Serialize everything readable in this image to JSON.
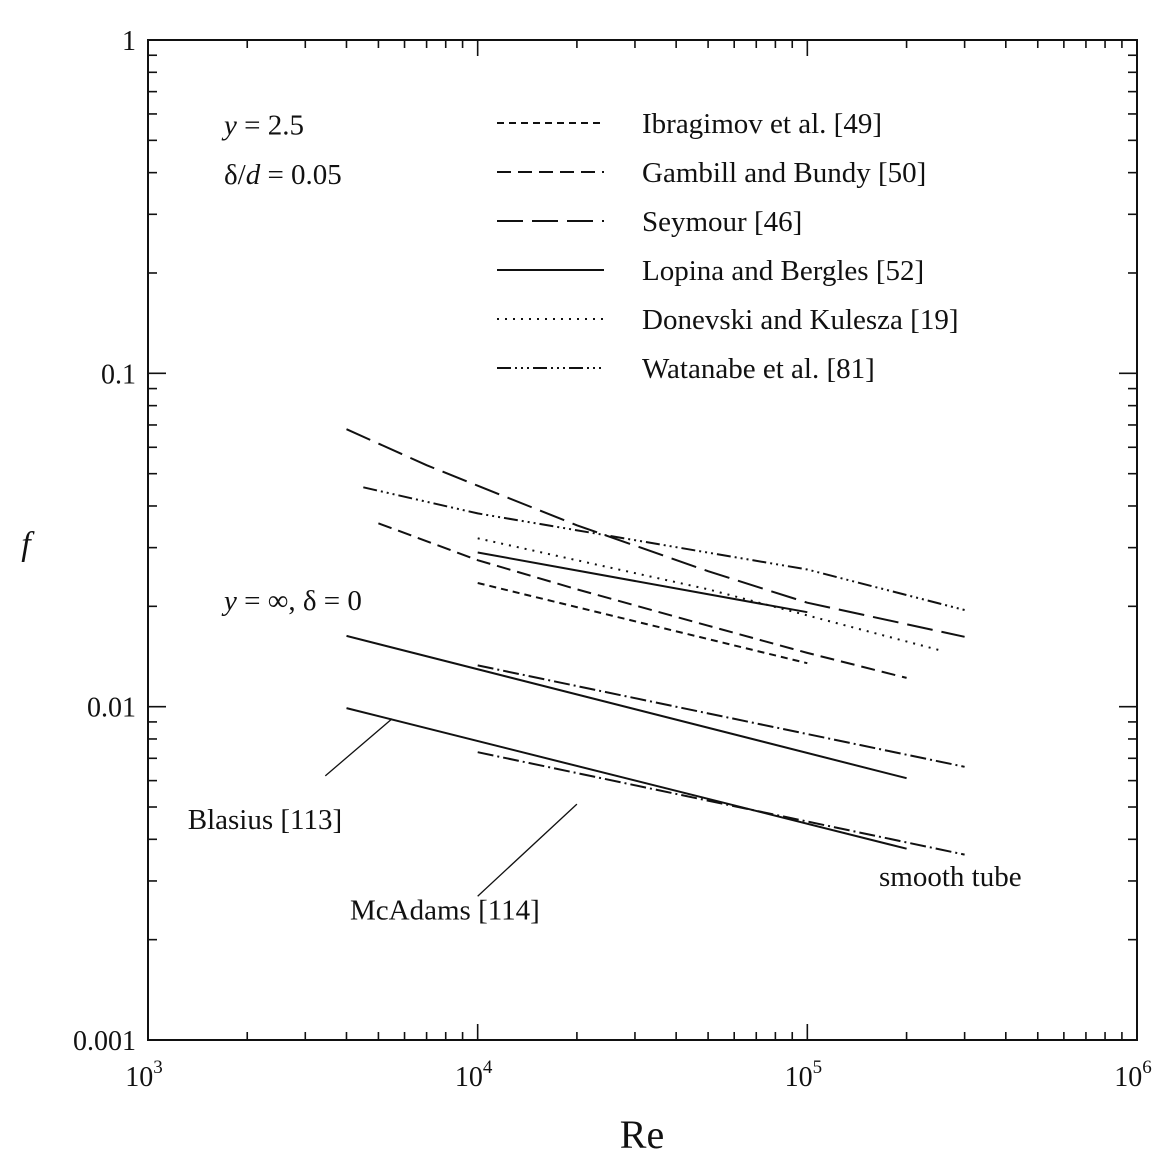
{
  "chart_data": {
    "type": "line",
    "xlabel": "Re",
    "ylabel": "f",
    "xscale": "log",
    "yscale": "log",
    "xlim": [
      1000,
      1000000
    ],
    "ylim": [
      0.001,
      1
    ],
    "x_tick_labels": [
      {
        "base": "10",
        "exp": "3",
        "value": 1000
      },
      {
        "base": "10",
        "exp": "4",
        "value": 10000
      },
      {
        "base": "10",
        "exp": "5",
        "value": 100000
      },
      {
        "base": "10",
        "exp": "6",
        "value": 1000000
      }
    ],
    "y_tick_labels": [
      {
        "text": "0.001",
        "value": 0.001
      },
      {
        "text": "0.01",
        "value": 0.01
      },
      {
        "text": "0.1",
        "value": 0.1
      },
      {
        "text": "1",
        "value": 1
      }
    ],
    "legend_position": "top-right",
    "series": [
      {
        "name": "Ibragimov et al. [49]",
        "dash": "7,5",
        "x": [
          10000,
          100000
        ],
        "y": [
          0.0235,
          0.0135
        ]
      },
      {
        "name": "Gambill and Bundy [50]",
        "dash": "14,7",
        "x": [
          5000,
          10000,
          20000,
          50000,
          100000,
          200000
        ],
        "y": [
          0.0355,
          0.0275,
          0.0225,
          0.0175,
          0.0145,
          0.0122
        ]
      },
      {
        "name": "Seymour [46]",
        "dash": "26,9",
        "x": [
          4000,
          7000,
          10000,
          20000,
          50000,
          100000,
          300000
        ],
        "y": [
          0.068,
          0.053,
          0.046,
          0.035,
          0.0255,
          0.0205,
          0.0162
        ]
      },
      {
        "name": "Lopina and Bergles [52]",
        "dash": "",
        "x": [
          10000,
          100000
        ],
        "y": [
          0.029,
          0.0192
        ]
      },
      {
        "name": "Donevski and Kulesza [19]",
        "dash": "2,6",
        "x": [
          10000,
          50000,
          250000
        ],
        "y": [
          0.032,
          0.0225,
          0.0148
        ]
      },
      {
        "name": "Watanabe et al. [81]",
        "dash": "14,4,2,4,2,4,2,4",
        "x": [
          4500,
          10000,
          100000,
          300000
        ],
        "y": [
          0.0455,
          0.038,
          0.0258,
          0.0195
        ]
      },
      {
        "name": "",
        "dash": "",
        "x": [
          4000,
          200000
        ],
        "y": [
          0.0163,
          0.0061
        ]
      },
      {
        "name": "",
        "dash": "16,4,2,4",
        "x": [
          10000,
          300000
        ],
        "y": [
          0.0133,
          0.0066
        ]
      },
      {
        "name": "",
        "dash": "",
        "x": [
          4000,
          200000
        ],
        "y": [
          0.0099,
          0.00375
        ]
      },
      {
        "name": "",
        "dash": "16,4,2,4",
        "x": [
          10000,
          300000
        ],
        "y": [
          0.0073,
          0.0036
        ]
      }
    ],
    "annotations": [
      {
        "id": "ann-y25",
        "lines": [
          {
            "pre": "",
            "it": "y",
            "post": " = 2.5"
          }
        ],
        "x": 1700,
        "y": 0.52
      },
      {
        "id": "ann-dd",
        "lines": [
          {
            "pre": "δ/",
            "it": "d",
            "post": " = 0.05"
          }
        ],
        "x": 1700,
        "y": 0.37
      },
      {
        "id": "ann-yinf",
        "lines": [
          {
            "pre": "",
            "it": "y",
            "post": " = ∞, δ = 0"
          }
        ],
        "x": 1700,
        "y": 0.0195
      },
      {
        "id": "ann-blasius",
        "lines": [
          {
            "pre": "Blasius [113]",
            "it": "",
            "post": ""
          }
        ],
        "x": 1320,
        "y": 0.0043
      },
      {
        "id": "ann-mcadams",
        "lines": [
          {
            "pre": "McAdams [114]",
            "it": "",
            "post": ""
          }
        ],
        "x": 4100,
        "y": 0.0023
      },
      {
        "id": "ann-smooth",
        "lines": [
          {
            "pre": "smooth tube",
            "it": "",
            "post": ""
          }
        ],
        "x": 165000,
        "y": 0.0029
      }
    ],
    "leaders": [
      {
        "from": [
          3450,
          0.0062
        ],
        "to": [
          5500,
          0.0092
        ]
      },
      {
        "from": [
          10000,
          0.0027
        ],
        "to": [
          20000,
          0.0051
        ]
      }
    ]
  }
}
